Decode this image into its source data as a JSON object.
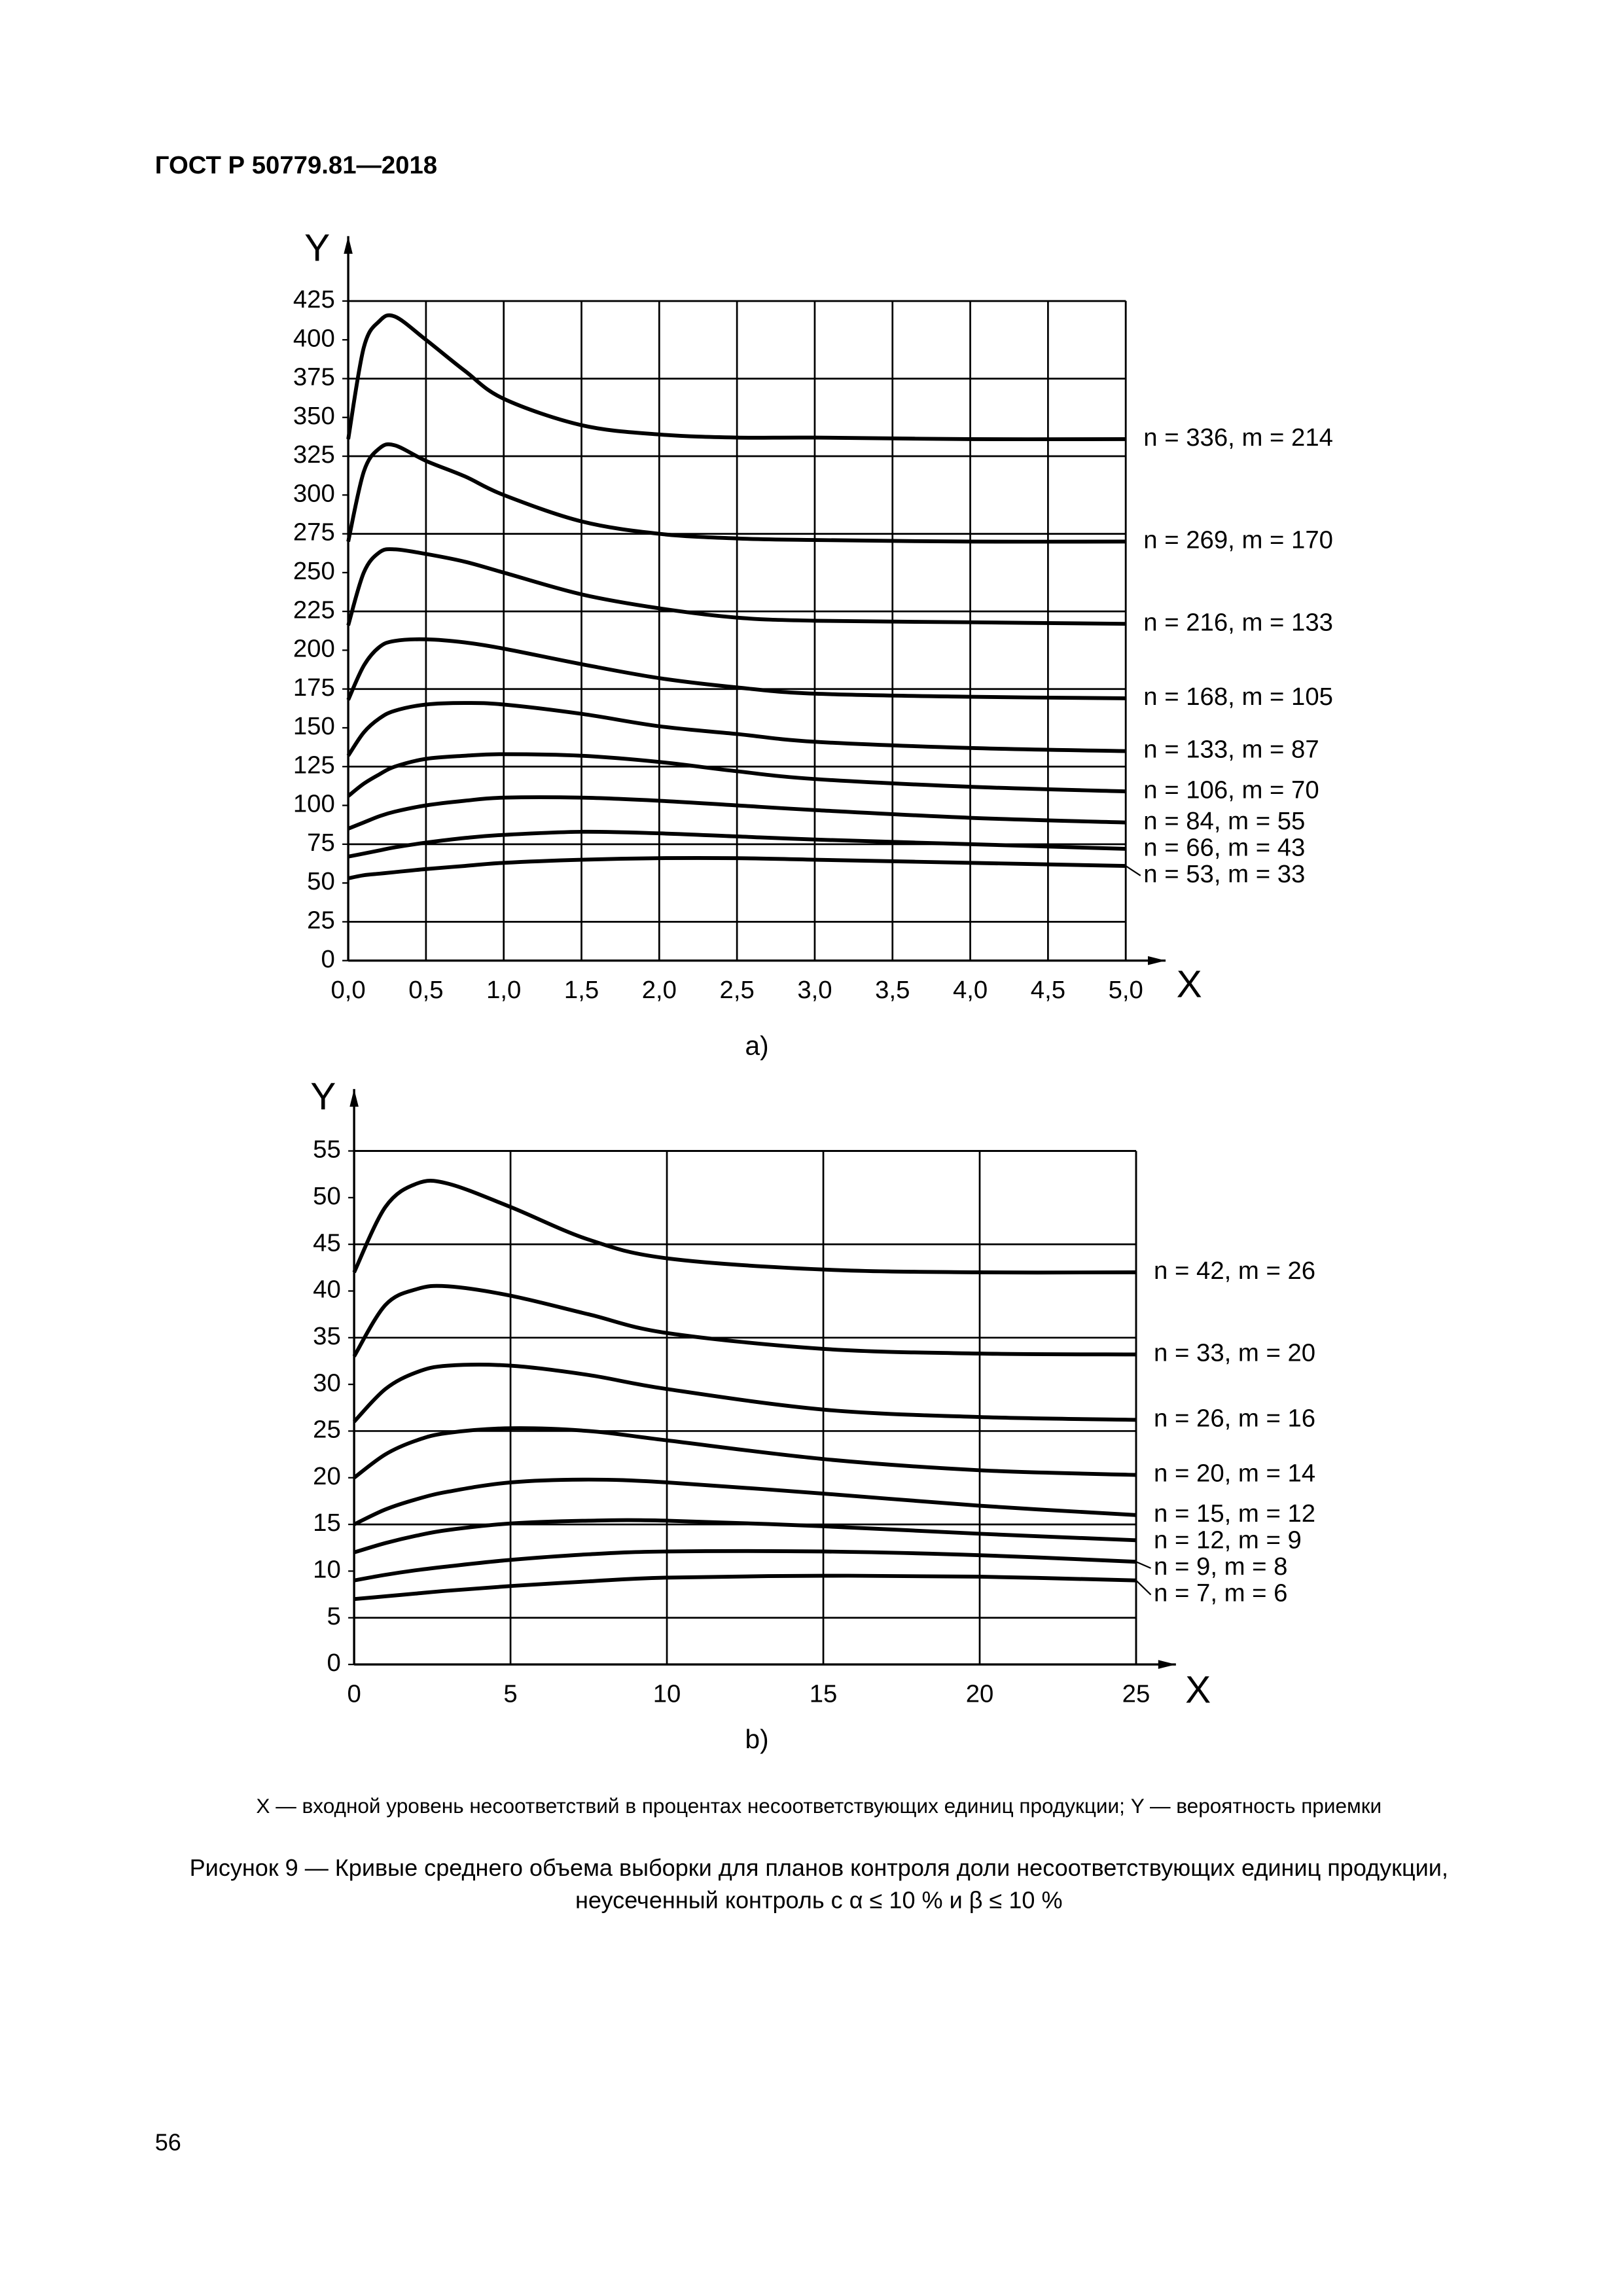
{
  "header": {
    "title": "ГОСТ Р 50779.81—2018"
  },
  "chart_data": [
    {
      "type": "line",
      "label": "a)",
      "x_label": "X",
      "y_label": "Y",
      "color": "#000000",
      "grid": true,
      "xlim": [
        0,
        5
      ],
      "ylim": [
        0,
        425
      ],
      "xticks": [
        {
          "value": 0,
          "label": "0,0"
        },
        {
          "value": 0.5,
          "label": "0,5"
        },
        {
          "value": 1,
          "label": "1,0"
        },
        {
          "value": 1.5,
          "label": "1,5"
        },
        {
          "value": 2,
          "label": "2,0"
        },
        {
          "value": 2.5,
          "label": "2,5"
        },
        {
          "value": 3,
          "label": "3,0"
        },
        {
          "value": 3.5,
          "label": "3,5"
        },
        {
          "value": 4,
          "label": "4,0"
        },
        {
          "value": 4.5,
          "label": "4,5"
        },
        {
          "value": 5,
          "label": "5,0"
        }
      ],
      "yticks": [
        0,
        25,
        50,
        75,
        100,
        125,
        150,
        175,
        200,
        225,
        250,
        275,
        300,
        325,
        350,
        375,
        400,
        425
      ],
      "x": [
        0,
        0.1,
        0.2,
        0.3,
        0.5,
        0.75,
        1,
        1.5,
        2,
        2.5,
        3,
        4,
        5
      ],
      "series": [
        {
          "name": "n = 336, m = 214",
          "values": [
            336,
            395,
            412,
            415,
            400,
            380,
            362,
            345,
            339,
            337,
            337,
            336,
            336
          ]
        },
        {
          "name": "n = 269, m = 170",
          "values": [
            270,
            315,
            330,
            332,
            322,
            312,
            300,
            283,
            275,
            272,
            271,
            270,
            270
          ]
        },
        {
          "name": "n = 216, m = 133",
          "values": [
            216,
            250,
            263,
            265,
            262,
            257,
            250,
            236,
            227,
            221,
            219,
            218,
            217
          ]
        },
        {
          "name": "n = 168, m = 105",
          "values": [
            168,
            190,
            202,
            206,
            207,
            205,
            201,
            191,
            182,
            176,
            172,
            170,
            169
          ]
        },
        {
          "name": "n = 133, m = 87",
          "values": [
            132,
            147,
            156,
            161,
            165,
            166,
            165,
            159,
            151,
            146,
            141,
            137,
            135
          ]
        },
        {
          "name": "n = 106, m = 70",
          "values": [
            106,
            114,
            120,
            125,
            130,
            132,
            133,
            132,
            128,
            122,
            117,
            112,
            109
          ]
        },
        {
          "name": "n = 84, m = 55",
          "values": [
            85,
            89,
            93,
            96,
            100,
            103,
            105,
            105,
            103,
            100,
            97,
            92,
            89
          ]
        },
        {
          "name": "n = 66, m = 43",
          "values": [
            67,
            69,
            71,
            73,
            76,
            79,
            81,
            83,
            82,
            80,
            78,
            75,
            72
          ]
        },
        {
          "name": "n = 53, m = 33",
          "values": [
            53,
            55,
            56,
            57,
            59,
            61,
            63,
            65,
            66,
            66,
            65,
            63,
            61
          ]
        }
      ]
    },
    {
      "type": "line",
      "label": "b)",
      "x_label": "X",
      "y_label": "Y",
      "color": "#000000",
      "grid": true,
      "xlim": [
        0,
        25
      ],
      "ylim": [
        0,
        55
      ],
      "xticks": [
        0,
        5,
        10,
        15,
        20,
        25
      ],
      "yticks": [
        0,
        5,
        10,
        15,
        20,
        25,
        30,
        35,
        40,
        45,
        50,
        55
      ],
      "x": [
        0,
        1,
        2,
        3,
        5,
        7.5,
        10,
        15,
        20,
        25
      ],
      "series": [
        {
          "name": "n = 42, m = 26",
          "values": [
            42,
            49,
            51.5,
            51.5,
            49,
            45.5,
            43.5,
            42.3,
            42,
            42
          ]
        },
        {
          "name": "n = 33, m = 20",
          "values": [
            33,
            38.5,
            40.2,
            40.5,
            39.5,
            37.5,
            35.5,
            33.8,
            33.3,
            33.2
          ]
        },
        {
          "name": "n = 26, m = 16",
          "values": [
            26,
            29.5,
            31.3,
            32,
            32,
            31,
            29.5,
            27.3,
            26.5,
            26.2
          ]
        },
        {
          "name": "n = 20, m = 14",
          "values": [
            20,
            22.5,
            24,
            24.8,
            25.3,
            25,
            24,
            22,
            20.8,
            20.3
          ]
        },
        {
          "name": "n = 15, m = 12",
          "values": [
            15,
            16.6,
            17.7,
            18.5,
            19.5,
            19.8,
            19.5,
            18.3,
            17,
            16
          ]
        },
        {
          "name": "n = 12, m = 9",
          "values": [
            12,
            13,
            13.8,
            14.4,
            15.1,
            15.4,
            15.4,
            14.8,
            14,
            13.3
          ]
        },
        {
          "name": "n = 9, m = 8",
          "values": [
            9,
            9.6,
            10.1,
            10.5,
            11.2,
            11.8,
            12.1,
            12.1,
            11.7,
            11
          ]
        },
        {
          "name": "n = 7, m = 6",
          "values": [
            7,
            7.3,
            7.6,
            7.9,
            8.4,
            8.9,
            9.3,
            9.5,
            9.4,
            9
          ]
        }
      ]
    }
  ],
  "legend_note": "X — входной уровень несоответствий в процентах несоответствующих единиц продукции; Y — вероятность приемки",
  "caption": {
    "line1": "Рисунок 9 — Кривые среднего объема выборки для планов контроля доли несоответствующих единиц продукции,",
    "line2": "неусеченный контроль с α ≤ 10 % и β ≤ 10 %"
  },
  "page_number": "56"
}
